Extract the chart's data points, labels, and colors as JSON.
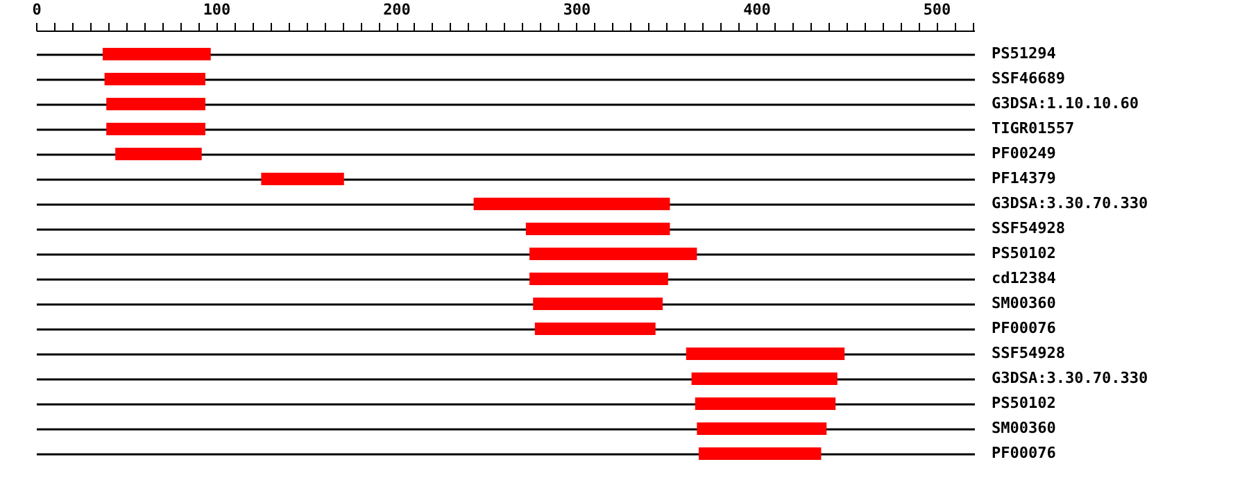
{
  "chart_data": {
    "type": "bar",
    "orientation": "horizontal",
    "categories": [
      "PS51294",
      "SSF46689",
      "G3DSA:1.10.10.60",
      "TIGR01557",
      "PF00249",
      "PF14379",
      "G3DSA:3.30.70.330",
      "SSF54928",
      "PS50102",
      "cd12384",
      "SM00360",
      "PF00076",
      "SSF54928",
      "G3DSA:3.30.70.330",
      "PS50102",
      "SM00360",
      "PF00076"
    ],
    "base": [
      37,
      38,
      39,
      39,
      44,
      125,
      243,
      272,
      274,
      274,
      276,
      277,
      361,
      364,
      366,
      367,
      368
    ],
    "values": [
      60,
      56,
      55,
      55,
      48,
      46,
      109,
      80,
      93,
      77,
      72,
      67,
      88,
      81,
      78,
      72,
      68
    ],
    "color": "#ff0000",
    "xlim": [
      0,
      521
    ],
    "xticks": [
      0,
      {
        "value": 10,
        "label": null
      },
      {
        "value": 20,
        "label": null
      },
      {
        "value": 30,
        "label": null
      },
      {
        "value": 40,
        "label": null
      },
      {
        "value": 50,
        "label": null
      },
      {
        "value": 60,
        "label": null
      },
      {
        "value": 70,
        "label": null
      },
      {
        "value": 80,
        "label": null
      },
      {
        "value": 90,
        "label": null
      },
      100,
      {
        "value": 110,
        "label": null
      },
      {
        "value": 120,
        "label": null
      },
      {
        "value": 130,
        "label": null
      },
      {
        "value": 140,
        "label": null
      },
      {
        "value": 150,
        "label": null
      },
      {
        "value": 160,
        "label": null
      },
      {
        "value": 170,
        "label": null
      },
      {
        "value": 180,
        "label": null
      },
      {
        "value": 190,
        "label": null
      },
      200,
      {
        "value": 210,
        "label": null
      },
      {
        "value": 220,
        "label": null
      },
      {
        "value": 230,
        "label": null
      },
      {
        "value": 240,
        "label": null
      },
      {
        "value": 250,
        "label": null
      },
      {
        "value": 260,
        "label": null
      },
      {
        "value": 270,
        "label": null
      },
      {
        "value": 280,
        "label": null
      },
      {
        "value": 290,
        "label": null
      },
      300,
      {
        "value": 310,
        "label": null
      },
      {
        "value": 320,
        "label": null
      },
      {
        "value": 330,
        "label": null
      },
      {
        "value": 340,
        "label": null
      },
      {
        "value": 350,
        "label": null
      },
      {
        "value": 360,
        "label": null
      },
      {
        "value": 370,
        "label": null
      },
      {
        "value": 380,
        "label": null
      },
      {
        "value": 390,
        "label": null
      },
      400,
      {
        "value": 410,
        "label": null
      },
      {
        "value": 420,
        "label": null
      },
      {
        "value": 430,
        "label": null
      },
      {
        "value": 440,
        "label": null
      },
      {
        "value": 450,
        "label": null
      },
      {
        "value": 460,
        "label": null
      },
      {
        "value": 470,
        "label": null
      },
      {
        "value": 480,
        "label": null
      },
      {
        "value": 490,
        "label": null
      },
      500,
      {
        "value": 510,
        "label": null
      },
      {
        "value": 520,
        "label": null
      }
    ],
    "grid": "y"
  }
}
